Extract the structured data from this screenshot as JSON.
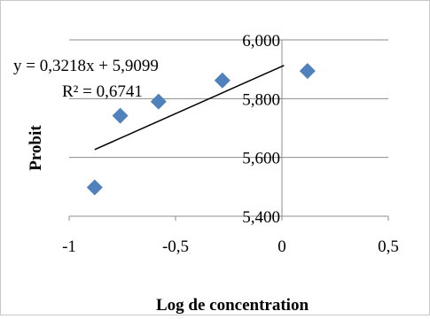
{
  "chart_data": {
    "type": "scatter",
    "title": "",
    "xlabel": "Log de concentration",
    "ylabel": "Probit",
    "xlim": [
      -1,
      0.5
    ],
    "ylim": [
      5.4,
      6.0
    ],
    "x_ticks": [
      -1,
      -0.5,
      0,
      0.5
    ],
    "x_tick_labels": [
      "-1",
      "-0,5",
      "0",
      "0,5"
    ],
    "y_ticks": [
      5.4,
      5.6,
      5.8,
      6.0
    ],
    "y_tick_labels": [
      "5,400",
      "5,600",
      "5,800",
      "6,000"
    ],
    "grid": "horizontal",
    "series": [
      {
        "x": [
          -0.88,
          -0.76,
          -0.58,
          -0.28,
          0.12
        ],
        "y": [
          5.498,
          5.742,
          5.79,
          5.862,
          5.894
        ],
        "color": "#4f81bd",
        "marker": "diamond"
      }
    ],
    "trendline": {
      "type": "linear",
      "slope": 0.3218,
      "intercept": 5.9099,
      "x_range": [
        -0.88,
        0.01
      ],
      "color": "#000000",
      "equation_label": "y = 0,3218x + 5,9099",
      "r2_label": "R² = 0,6741"
    }
  }
}
